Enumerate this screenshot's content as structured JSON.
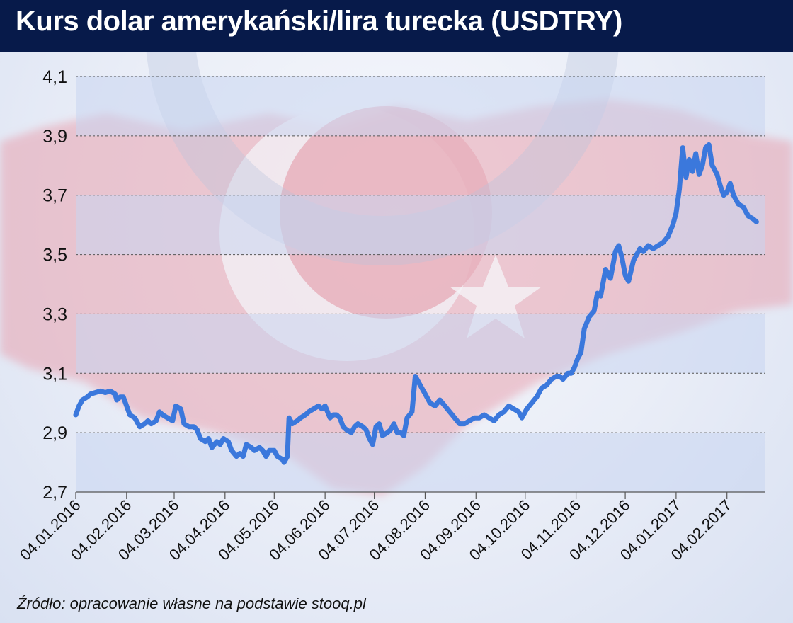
{
  "header": {
    "title": "Kurs dolar amerykański/lira turecka (USDTRY)"
  },
  "footer": {
    "source": "Źródło: opracowanie własne na podstawie stooq.pl"
  },
  "colors": {
    "header_bg": "#071a4a",
    "line": "#3b78dc",
    "band": "#c9d6f0",
    "grid": "#555555",
    "flag_red": "#e3a0ad"
  },
  "chart_data": {
    "type": "line",
    "title": "Kurs dolar amerykański/lira turecka (USDTRY)",
    "xlabel": "",
    "ylabel": "",
    "ylim": [
      2.7,
      4.1
    ],
    "yticks": [
      2.7,
      2.9,
      3.1,
      3.3,
      3.5,
      3.7,
      3.9,
      4.1
    ],
    "ytick_labels": [
      "2,7",
      "2,9",
      "3,1",
      "3,3",
      "3,5",
      "3,7",
      "3,9",
      "4,1"
    ],
    "grid": "horizontal dashed",
    "xlim": [
      "2016-01-04",
      "2017-02-27"
    ],
    "xticks": [
      "2016-01-04",
      "2016-02-04",
      "2016-03-04",
      "2016-04-04",
      "2016-05-04",
      "2016-06-04",
      "2016-07-04",
      "2016-08-04",
      "2016-09-04",
      "2016-10-04",
      "2016-11-04",
      "2016-12-04",
      "2017-01-04",
      "2017-02-04"
    ],
    "xtick_labels": [
      "04.01.2016",
      "04.02.2016",
      "04.03.2016",
      "04.04.2016",
      "04.05.2016",
      "04.06.2016",
      "04.07.2016",
      "04.08.2016",
      "04.09.2016",
      "04.10.2016",
      "04.11.2016",
      "04.12.2016",
      "04.01.2017",
      "04.02.2017"
    ],
    "series": [
      {
        "name": "",
        "points": [
          [
            "2016-01-04",
            2.96
          ],
          [
            "2016-01-06",
            2.99
          ],
          [
            "2016-01-08",
            3.01
          ],
          [
            "2016-01-11",
            3.02
          ],
          [
            "2016-01-13",
            3.03
          ],
          [
            "2016-01-16",
            3.035
          ],
          [
            "2016-01-19",
            3.04
          ],
          [
            "2016-01-22",
            3.035
          ],
          [
            "2016-01-25",
            3.04
          ],
          [
            "2016-01-28",
            3.03
          ],
          [
            "2016-01-29",
            3.01
          ],
          [
            "2016-01-31",
            3.02
          ],
          [
            "2016-02-02",
            3.02
          ],
          [
            "2016-02-04",
            2.99
          ],
          [
            "2016-02-06",
            2.96
          ],
          [
            "2016-02-09",
            2.95
          ],
          [
            "2016-02-11",
            2.93
          ],
          [
            "2016-02-12",
            2.92
          ],
          [
            "2016-02-15",
            2.93
          ],
          [
            "2016-02-17",
            2.94
          ],
          [
            "2016-02-19",
            2.93
          ],
          [
            "2016-02-22",
            2.94
          ],
          [
            "2016-02-24",
            2.97
          ],
          [
            "2016-02-26",
            2.96
          ],
          [
            "2016-02-29",
            2.95
          ],
          [
            "2016-03-03",
            2.94
          ],
          [
            "2016-03-05",
            2.99
          ],
          [
            "2016-03-08",
            2.98
          ],
          [
            "2016-03-10",
            2.93
          ],
          [
            "2016-03-13",
            2.92
          ],
          [
            "2016-03-16",
            2.92
          ],
          [
            "2016-03-18",
            2.91
          ],
          [
            "2016-03-20",
            2.88
          ],
          [
            "2016-03-23",
            2.87
          ],
          [
            "2016-03-25",
            2.88
          ],
          [
            "2016-03-27",
            2.85
          ],
          [
            "2016-03-30",
            2.87
          ],
          [
            "2016-04-01",
            2.86
          ],
          [
            "2016-04-03",
            2.88
          ],
          [
            "2016-04-06",
            2.87
          ],
          [
            "2016-04-08",
            2.84
          ],
          [
            "2016-04-11",
            2.82
          ],
          [
            "2016-04-13",
            2.83
          ],
          [
            "2016-04-15",
            2.82
          ],
          [
            "2016-04-17",
            2.86
          ],
          [
            "2016-04-20",
            2.85
          ],
          [
            "2016-04-22",
            2.84
          ],
          [
            "2016-04-25",
            2.85
          ],
          [
            "2016-04-27",
            2.84
          ],
          [
            "2016-04-29",
            2.82
          ],
          [
            "2016-05-01",
            2.84
          ],
          [
            "2016-05-04",
            2.84
          ],
          [
            "2016-05-06",
            2.82
          ],
          [
            "2016-05-09",
            2.81
          ],
          [
            "2016-05-10",
            2.8
          ],
          [
            "2016-05-12",
            2.82
          ],
          [
            "2016-05-13",
            2.95
          ],
          [
            "2016-05-15",
            2.93
          ],
          [
            "2016-05-18",
            2.94
          ],
          [
            "2016-05-20",
            2.95
          ],
          [
            "2016-05-23",
            2.96
          ],
          [
            "2016-05-25",
            2.97
          ],
          [
            "2016-05-28",
            2.98
          ],
          [
            "2016-05-31",
            2.99
          ],
          [
            "2016-06-02",
            2.98
          ],
          [
            "2016-06-04",
            2.99
          ],
          [
            "2016-06-07",
            2.95
          ],
          [
            "2016-06-09",
            2.96
          ],
          [
            "2016-06-11",
            2.96
          ],
          [
            "2016-06-13",
            2.95
          ],
          [
            "2016-06-15",
            2.92
          ],
          [
            "2016-06-17",
            2.91
          ],
          [
            "2016-06-20",
            2.9
          ],
          [
            "2016-06-22",
            2.92
          ],
          [
            "2016-06-24",
            2.93
          ],
          [
            "2016-06-27",
            2.92
          ],
          [
            "2016-06-29",
            2.91
          ],
          [
            "2016-07-01",
            2.88
          ],
          [
            "2016-07-03",
            2.86
          ],
          [
            "2016-07-05",
            2.92
          ],
          [
            "2016-07-07",
            2.93
          ],
          [
            "2016-07-09",
            2.89
          ],
          [
            "2016-07-12",
            2.9
          ],
          [
            "2016-07-14",
            2.91
          ],
          [
            "2016-07-16",
            2.93
          ],
          [
            "2016-07-18",
            2.9
          ],
          [
            "2016-07-20",
            2.9
          ],
          [
            "2016-07-22",
            2.89
          ],
          [
            "2016-07-24",
            2.95
          ],
          [
            "2016-07-27",
            2.97
          ],
          [
            "2016-07-29",
            3.09
          ],
          [
            "2016-08-01",
            3.06
          ],
          [
            "2016-08-04",
            3.03
          ],
          [
            "2016-08-07",
            3.0
          ],
          [
            "2016-08-10",
            2.99
          ],
          [
            "2016-08-13",
            3.01
          ],
          [
            "2016-08-16",
            2.99
          ],
          [
            "2016-08-19",
            2.97
          ],
          [
            "2016-08-22",
            2.95
          ],
          [
            "2016-08-25",
            2.93
          ],
          [
            "2016-08-28",
            2.93
          ],
          [
            "2016-08-31",
            2.94
          ],
          [
            "2016-09-03",
            2.95
          ],
          [
            "2016-09-06",
            2.95
          ],
          [
            "2016-09-09",
            2.96
          ],
          [
            "2016-09-12",
            2.95
          ],
          [
            "2016-09-15",
            2.94
          ],
          [
            "2016-09-18",
            2.96
          ],
          [
            "2016-09-21",
            2.97
          ],
          [
            "2016-09-24",
            2.99
          ],
          [
            "2016-09-27",
            2.98
          ],
          [
            "2016-09-30",
            2.97
          ],
          [
            "2016-10-02",
            2.95
          ],
          [
            "2016-10-05",
            2.98
          ],
          [
            "2016-10-08",
            3.0
          ],
          [
            "2016-10-11",
            3.02
          ],
          [
            "2016-10-14",
            3.05
          ],
          [
            "2016-10-17",
            3.06
          ],
          [
            "2016-10-20",
            3.08
          ],
          [
            "2016-10-23",
            3.09
          ],
          [
            "2016-10-25",
            3.09
          ],
          [
            "2016-10-27",
            3.08
          ],
          [
            "2016-10-30",
            3.1
          ],
          [
            "2016-11-01",
            3.1
          ],
          [
            "2016-11-03",
            3.12
          ],
          [
            "2016-11-05",
            3.15
          ],
          [
            "2016-11-07",
            3.17
          ],
          [
            "2016-11-09",
            3.25
          ],
          [
            "2016-11-12",
            3.29
          ],
          [
            "2016-11-15",
            3.31
          ],
          [
            "2016-11-17",
            3.37
          ],
          [
            "2016-11-19",
            3.36
          ],
          [
            "2016-11-22",
            3.45
          ],
          [
            "2016-11-25",
            3.42
          ],
          [
            "2016-11-28",
            3.51
          ],
          [
            "2016-11-30",
            3.53
          ],
          [
            "2016-12-02",
            3.49
          ],
          [
            "2016-12-04",
            3.43
          ],
          [
            "2016-12-06",
            3.41
          ],
          [
            "2016-12-09",
            3.48
          ],
          [
            "2016-12-11",
            3.5
          ],
          [
            "2016-12-13",
            3.52
          ],
          [
            "2016-12-15",
            3.51
          ],
          [
            "2016-12-18",
            3.53
          ],
          [
            "2016-12-21",
            3.52
          ],
          [
            "2016-12-24",
            3.53
          ],
          [
            "2016-12-27",
            3.54
          ],
          [
            "2016-12-30",
            3.56
          ],
          [
            "2017-01-02",
            3.6
          ],
          [
            "2017-01-04",
            3.64
          ],
          [
            "2017-01-06",
            3.72
          ],
          [
            "2017-01-08",
            3.86
          ],
          [
            "2017-01-10",
            3.76
          ],
          [
            "2017-01-12",
            3.82
          ],
          [
            "2017-01-14",
            3.78
          ],
          [
            "2017-01-16",
            3.84
          ],
          [
            "2017-01-18",
            3.77
          ],
          [
            "2017-01-20",
            3.8
          ],
          [
            "2017-01-22",
            3.86
          ],
          [
            "2017-01-24",
            3.87
          ],
          [
            "2017-01-26",
            3.8
          ],
          [
            "2017-01-29",
            3.77
          ],
          [
            "2017-01-31",
            3.73
          ],
          [
            "2017-02-02",
            3.7
          ],
          [
            "2017-02-04",
            3.71
          ],
          [
            "2017-02-06",
            3.74
          ],
          [
            "2017-02-08",
            3.7
          ],
          [
            "2017-02-11",
            3.67
          ],
          [
            "2017-02-14",
            3.66
          ],
          [
            "2017-02-17",
            3.63
          ],
          [
            "2017-02-20",
            3.62
          ],
          [
            "2017-02-22",
            3.61
          ]
        ]
      }
    ]
  }
}
